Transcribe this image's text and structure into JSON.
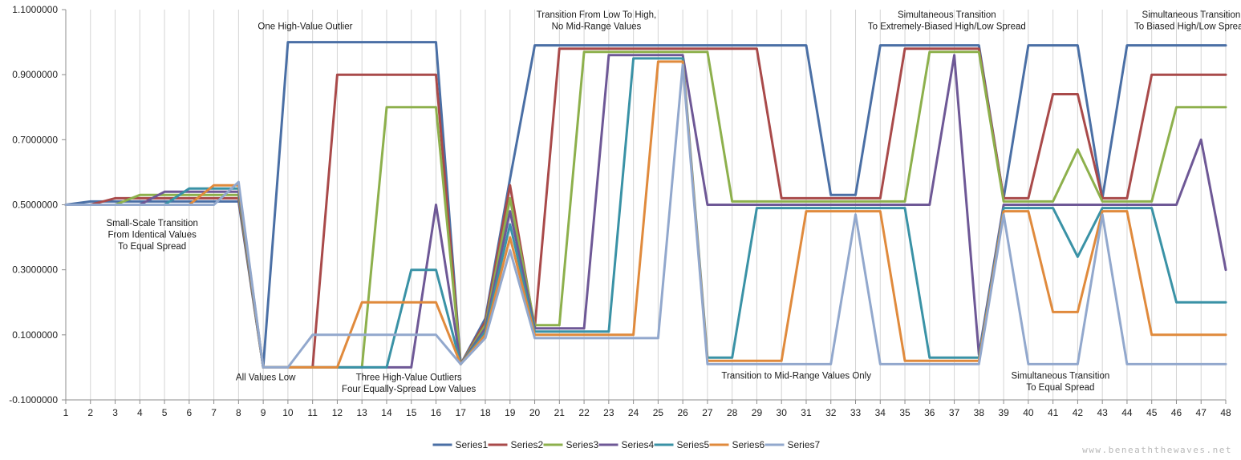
{
  "chart_data": {
    "type": "line",
    "x": [
      1,
      2,
      3,
      4,
      5,
      6,
      7,
      8,
      9,
      10,
      11,
      12,
      13,
      14,
      15,
      16,
      17,
      18,
      19,
      20,
      21,
      22,
      23,
      24,
      25,
      26,
      27,
      28,
      29,
      30,
      31,
      32,
      33,
      34,
      35,
      36,
      37,
      38,
      39,
      40,
      41,
      42,
      43,
      44,
      45,
      46,
      47,
      48
    ],
    "ylim": [
      -0.1,
      1.1
    ],
    "yticks": [
      "-0.1000000",
      "0.1000000",
      "0.3000000",
      "0.5000000",
      "0.7000000",
      "0.9000000",
      "1.1000000"
    ],
    "ytick_values": [
      -0.1,
      0.1,
      0.3,
      0.5,
      0.7,
      0.9,
      1.1
    ],
    "grid": "vertical",
    "legend_position": "bottom",
    "series": [
      {
        "name": "Series1",
        "color": "#4a6fa5",
        "values": [
          0.5,
          0.51,
          0.51,
          0.51,
          0.51,
          0.51,
          0.51,
          0.51,
          0,
          1,
          1,
          1,
          1,
          1,
          1,
          1,
          0.01,
          0.15,
          0.58,
          0.99,
          0.99,
          0.99,
          0.99,
          0.99,
          0.99,
          0.99,
          0.99,
          0.99,
          0.99,
          0.99,
          0.99,
          0.53,
          0.53,
          0.99,
          0.99,
          0.99,
          0.99,
          0.99,
          0.52,
          0.99,
          0.99,
          0.99,
          0.52,
          0.99,
          0.99,
          0.99,
          0.99,
          0.99
        ]
      },
      {
        "name": "Series2",
        "color": "#a94a4a",
        "values": [
          0.5,
          0.5,
          0.52,
          0.52,
          0.52,
          0.52,
          0.52,
          0.52,
          0,
          0,
          0,
          0.9,
          0.9,
          0.9,
          0.9,
          0.9,
          0.01,
          0.14,
          0.56,
          0.12,
          0.98,
          0.98,
          0.98,
          0.98,
          0.98,
          0.98,
          0.98,
          0.98,
          0.98,
          0.52,
          0.52,
          0.52,
          0.52,
          0.52,
          0.98,
          0.98,
          0.98,
          0.98,
          0.52,
          0.52,
          0.84,
          0.84,
          0.52,
          0.52,
          0.9,
          0.9,
          0.9,
          0.9
        ]
      },
      {
        "name": "Series3",
        "color": "#8db04c",
        "values": [
          0.5,
          0.5,
          0.5,
          0.53,
          0.53,
          0.53,
          0.53,
          0.53,
          0,
          0,
          0,
          0,
          0,
          0.8,
          0.8,
          0.8,
          0.01,
          0.13,
          0.52,
          0.13,
          0.13,
          0.97,
          0.97,
          0.97,
          0.97,
          0.97,
          0.97,
          0.51,
          0.51,
          0.51,
          0.51,
          0.51,
          0.51,
          0.51,
          0.51,
          0.97,
          0.97,
          0.97,
          0.51,
          0.51,
          0.51,
          0.67,
          0.51,
          0.51,
          0.51,
          0.8,
          0.8,
          0.8
        ]
      },
      {
        "name": "Series4",
        "color": "#6e5896",
        "values": [
          0.5,
          0.5,
          0.5,
          0.5,
          0.54,
          0.54,
          0.54,
          0.54,
          0,
          0,
          0,
          0,
          0,
          0,
          0,
          0.5,
          0.01,
          0.12,
          0.48,
          0.12,
          0.12,
          0.12,
          0.96,
          0.96,
          0.96,
          0.96,
          0.5,
          0.5,
          0.5,
          0.5,
          0.5,
          0.5,
          0.5,
          0.5,
          0.5,
          0.5,
          0.96,
          0.04,
          0.5,
          0.5,
          0.5,
          0.5,
          0.5,
          0.5,
          0.5,
          0.5,
          0.7,
          0.3
        ]
      },
      {
        "name": "Series5",
        "color": "#3a92a6",
        "values": [
          0.5,
          0.5,
          0.5,
          0.5,
          0.5,
          0.55,
          0.55,
          0.55,
          0,
          0,
          0,
          0,
          0,
          0,
          0.3,
          0.3,
          0.01,
          0.11,
          0.44,
          0.11,
          0.11,
          0.11,
          0.11,
          0.95,
          0.95,
          0.95,
          0.03,
          0.03,
          0.49,
          0.49,
          0.49,
          0.49,
          0.49,
          0.49,
          0.49,
          0.03,
          0.03,
          0.03,
          0.49,
          0.49,
          0.49,
          0.34,
          0.49,
          0.49,
          0.49,
          0.2,
          0.2,
          0.2
        ]
      },
      {
        "name": "Series6",
        "color": "#e08a3c",
        "values": [
          0.5,
          0.5,
          0.5,
          0.5,
          0.5,
          0.5,
          0.56,
          0.56,
          0,
          0,
          0,
          0,
          0.2,
          0.2,
          0.2,
          0.2,
          0.01,
          0.1,
          0.4,
          0.1,
          0.1,
          0.1,
          0.1,
          0.1,
          0.94,
          0.94,
          0.02,
          0.02,
          0.02,
          0.02,
          0.48,
          0.48,
          0.48,
          0.48,
          0.02,
          0.02,
          0.02,
          0.02,
          0.48,
          0.48,
          0.17,
          0.17,
          0.48,
          0.48,
          0.1,
          0.1,
          0.1,
          0.1
        ]
      },
      {
        "name": "Series7",
        "color": "#92a8cd",
        "values": [
          0.5,
          0.5,
          0.5,
          0.5,
          0.5,
          0.5,
          0.5,
          0.57,
          0,
          0,
          0.1,
          0.1,
          0.1,
          0.1,
          0.1,
          0.1,
          0.01,
          0.09,
          0.36,
          0.09,
          0.09,
          0.09,
          0.09,
          0.09,
          0.09,
          0.93,
          0.01,
          0.01,
          0.01,
          0.01,
          0.01,
          0.01,
          0.47,
          0.01,
          0.01,
          0.01,
          0.01,
          0.01,
          0.47,
          0.01,
          0.01,
          0.01,
          0.47,
          0.01,
          0.01,
          0.01,
          0.01,
          0.01
        ]
      }
    ],
    "annotations": [
      {
        "lines": [
          "One High-Value Outlier"
        ],
        "x": 10.7,
        "y": 1.04
      },
      {
        "lines": [
          "Transition From Low To High,",
          "No Mid-Range Values"
        ],
        "x": 22.5,
        "y": 1.075
      },
      {
        "lines": [
          "Simultaneous Transition",
          "To Extremely-Biased High/Low Spread"
        ],
        "x": 36.7,
        "y": 1.075
      },
      {
        "lines": [
          "Simultaneous Transition",
          "To Biased High/Low Spread"
        ],
        "x": 46.6,
        "y": 1.075
      },
      {
        "lines": [
          "Small-Scale Transition",
          "From Identical Values",
          "To Equal Spread"
        ],
        "x": 4.5,
        "y": 0.435
      },
      {
        "lines": [
          "All Values Low"
        ],
        "x": 9.1,
        "y": -0.04
      },
      {
        "lines": [
          "Three High-Value Outliers",
          "Four Equally-Spread Low Values"
        ],
        "x": 14.9,
        "y": -0.04
      },
      {
        "lines": [
          "Transition to Mid-Range Values Only"
        ],
        "x": 30.6,
        "y": -0.035
      },
      {
        "lines": [
          "Simultaneous Transition",
          "To Equal Spread"
        ],
        "x": 41.3,
        "y": -0.035
      }
    ]
  },
  "watermark": "www.beneaththewaves.net"
}
